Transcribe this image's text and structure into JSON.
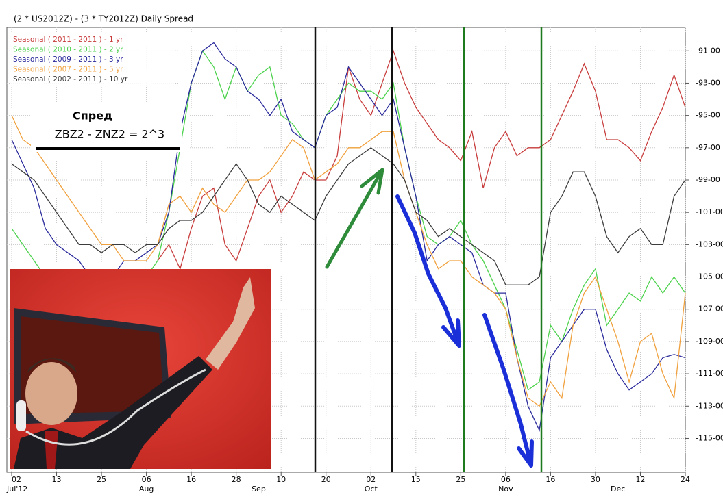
{
  "chart_data": {
    "type": "line",
    "title": "(2 * US2012Z) - (3 * TY2012Z) Daily Spread",
    "annotations": [
      "Спред",
      "ZBZ2 - ZNZ2 = 2^3"
    ],
    "categories": [
      "02",
      null,
      null,
      null,
      "13",
      null,
      null,
      null,
      "25",
      null,
      null,
      null,
      "06",
      null,
      null,
      null,
      "16",
      null,
      null,
      null,
      "28",
      null,
      null,
      null,
      "10",
      null,
      null,
      null,
      "20",
      null,
      null,
      null,
      "02",
      null,
      null,
      null,
      "15",
      null,
      null,
      null,
      "25",
      null,
      null,
      null,
      "06",
      null,
      null,
      null,
      "16",
      null,
      null,
      null,
      "30",
      null,
      null,
      null,
      "12",
      null,
      null,
      null,
      "24"
    ],
    "month_labels": [
      "Jul'12",
      null,
      null,
      null,
      null,
      null,
      null,
      null,
      null,
      null,
      null,
      null,
      "Aug",
      null,
      null,
      null,
      null,
      null,
      null,
      null,
      null,
      null,
      "Sep",
      null,
      null,
      null,
      null,
      null,
      null,
      null,
      null,
      null,
      "Oct",
      null,
      null,
      null,
      null,
      null,
      null,
      null,
      null,
      null,
      null,
      null,
      "Nov",
      null,
      null,
      null,
      null,
      null,
      null,
      null,
      null,
      null,
      "Dec",
      null,
      null,
      null,
      null,
      null,
      null
    ],
    "ylim": [
      -117.1,
      -88.7
    ],
    "yticks": [
      {
        "value": -91,
        "label": "-91-00"
      },
      {
        "value": -93,
        "label": "-93-00"
      },
      {
        "value": -95,
        "label": "-95-00"
      },
      {
        "value": -97,
        "label": "-97-00"
      },
      {
        "value": -99,
        "label": "-99-00"
      },
      {
        "value": -101,
        "label": "-101-00"
      },
      {
        "value": -103,
        "label": "-103-00"
      },
      {
        "value": -105,
        "label": "-105-00"
      },
      {
        "value": -107,
        "label": "-107-00"
      },
      {
        "value": -109,
        "label": "-109-00"
      },
      {
        "value": -111,
        "label": "-111-00"
      },
      {
        "value": -113,
        "label": "-113-00"
      },
      {
        "value": -115,
        "label": "-115-00"
      }
    ],
    "grid": true,
    "legend": "top-left",
    "series": [
      {
        "name": "Seasonal ( 2011 - 2011 ) - 1 yr",
        "color": "#c83c3c",
        "values": [
          null,
          null,
          null,
          null,
          null,
          null,
          null,
          null,
          null,
          null,
          null,
          null,
          null,
          -104,
          -103,
          -104.5,
          -102,
          -100,
          -99.5,
          -103,
          -104,
          -102,
          -100,
          -99,
          -101,
          -100,
          -98.5,
          -99,
          -99,
          -97.5,
          -92,
          -94,
          -95,
          -93,
          -91,
          -93,
          -94.5,
          -95.5,
          -96.5,
          -97,
          -97.8,
          -96,
          -99.5,
          -97,
          -96,
          -97.5,
          -97,
          -97,
          -96.5,
          -95,
          -93.5,
          -91.8,
          -93.5,
          -96.5,
          -96.5,
          -97,
          -97.8,
          -96,
          -94.5,
          -92.5,
          -94.5
        ]
      },
      {
        "name": "Seasonal ( 2010 - 2011 ) - 2 yr",
        "color": "#4cd24c",
        "values": [
          -102,
          -103,
          -104,
          -105,
          -106,
          -107,
          -107,
          -108,
          -107,
          -107,
          -106,
          -106,
          -105,
          -104,
          -101,
          -97,
          -93,
          -91,
          -92,
          -94,
          -92,
          -93.5,
          -92.5,
          -92,
          -95,
          -95.5,
          -96.5,
          -97,
          -95,
          -94,
          -93,
          -93.5,
          -93.5,
          -94,
          -93,
          -97,
          -100,
          -102.5,
          -103,
          -102.5,
          -101.5,
          -103,
          -104,
          -105.5,
          -107,
          -109.5,
          -112,
          -111.5,
          -108,
          -109,
          -107,
          -105.5,
          -104.5,
          -108,
          -107,
          -106,
          -106.5,
          -105,
          -106,
          -105,
          -106
        ]
      },
      {
        "name": "Seasonal ( 2009 - 2011 ) - 3 yr",
        "color": "#2a2a9c",
        "values": [
          -96.5,
          -98,
          -99.5,
          -102,
          -103,
          -103.5,
          -104,
          -105,
          -106,
          -105,
          -104,
          -104,
          -103.5,
          -103,
          -101,
          -96,
          -93,
          -91,
          -90.5,
          -91.5,
          -92,
          -93.5,
          -94,
          -95,
          -94,
          -96,
          -96.5,
          -97,
          -95,
          -94.5,
          -92,
          -93,
          -94,
          -95,
          -94,
          -97,
          -100,
          -104,
          -103,
          -102.5,
          -103,
          -103.5,
          -105.5,
          -106,
          -106,
          -110,
          -113,
          -114.5,
          -110,
          -109,
          -108,
          -107,
          -107,
          -109.5,
          -111,
          -112,
          -111.5,
          -111,
          -110,
          -109.8,
          -110
        ]
      },
      {
        "name": "Seasonal ( 2007 - 2011 ) - 5 yr",
        "color": "#f0a03c",
        "values": [
          -95,
          -96.5,
          -97,
          -98,
          -99,
          -100,
          -101,
          -102,
          -103,
          -103,
          -104,
          -104,
          -104,
          -103,
          -100.5,
          -100,
          -101,
          -99.5,
          -100.5,
          -101,
          -100,
          -99,
          -99,
          -98.5,
          -97.5,
          -96.5,
          -97,
          -99,
          -98.5,
          -98,
          -97,
          -97,
          -96.5,
          -96,
          -96,
          -99,
          -101,
          -103,
          -104.5,
          -104,
          -104,
          -105,
          -105.5,
          -106,
          -107,
          -110,
          -112.5,
          -113,
          -111.5,
          -112.5,
          -108,
          -106,
          -105,
          -107,
          -109,
          -111.5,
          -109,
          -108.5,
          -111,
          -112.5,
          -106
        ]
      },
      {
        "name": "Seasonal ( 2002 - 2011 ) - 10 yr",
        "color": "#3c3c3c",
        "values": [
          -98,
          -98.5,
          -99,
          -100,
          -101,
          -102,
          -103,
          -103,
          -103.5,
          -103,
          -103,
          -103.5,
          -103,
          -103,
          -102,
          -101.5,
          -101.5,
          -101,
          -100,
          -99,
          -98,
          -99,
          -100.5,
          -101,
          -100,
          -100.5,
          -101,
          -101.5,
          -100,
          -99,
          -98,
          -97.5,
          -97,
          -97.5,
          -98,
          -99,
          -101,
          -101.5,
          -102.5,
          -102,
          -102.5,
          -103,
          -103.5,
          -104,
          -105.5,
          -105.5,
          -105.5,
          -105,
          -101,
          -100,
          -98.5,
          -98.5,
          -100,
          -102.5,
          -103.5,
          -102.5,
          -102,
          -103,
          -103,
          -100,
          -99
        ]
      }
    ]
  }
}
